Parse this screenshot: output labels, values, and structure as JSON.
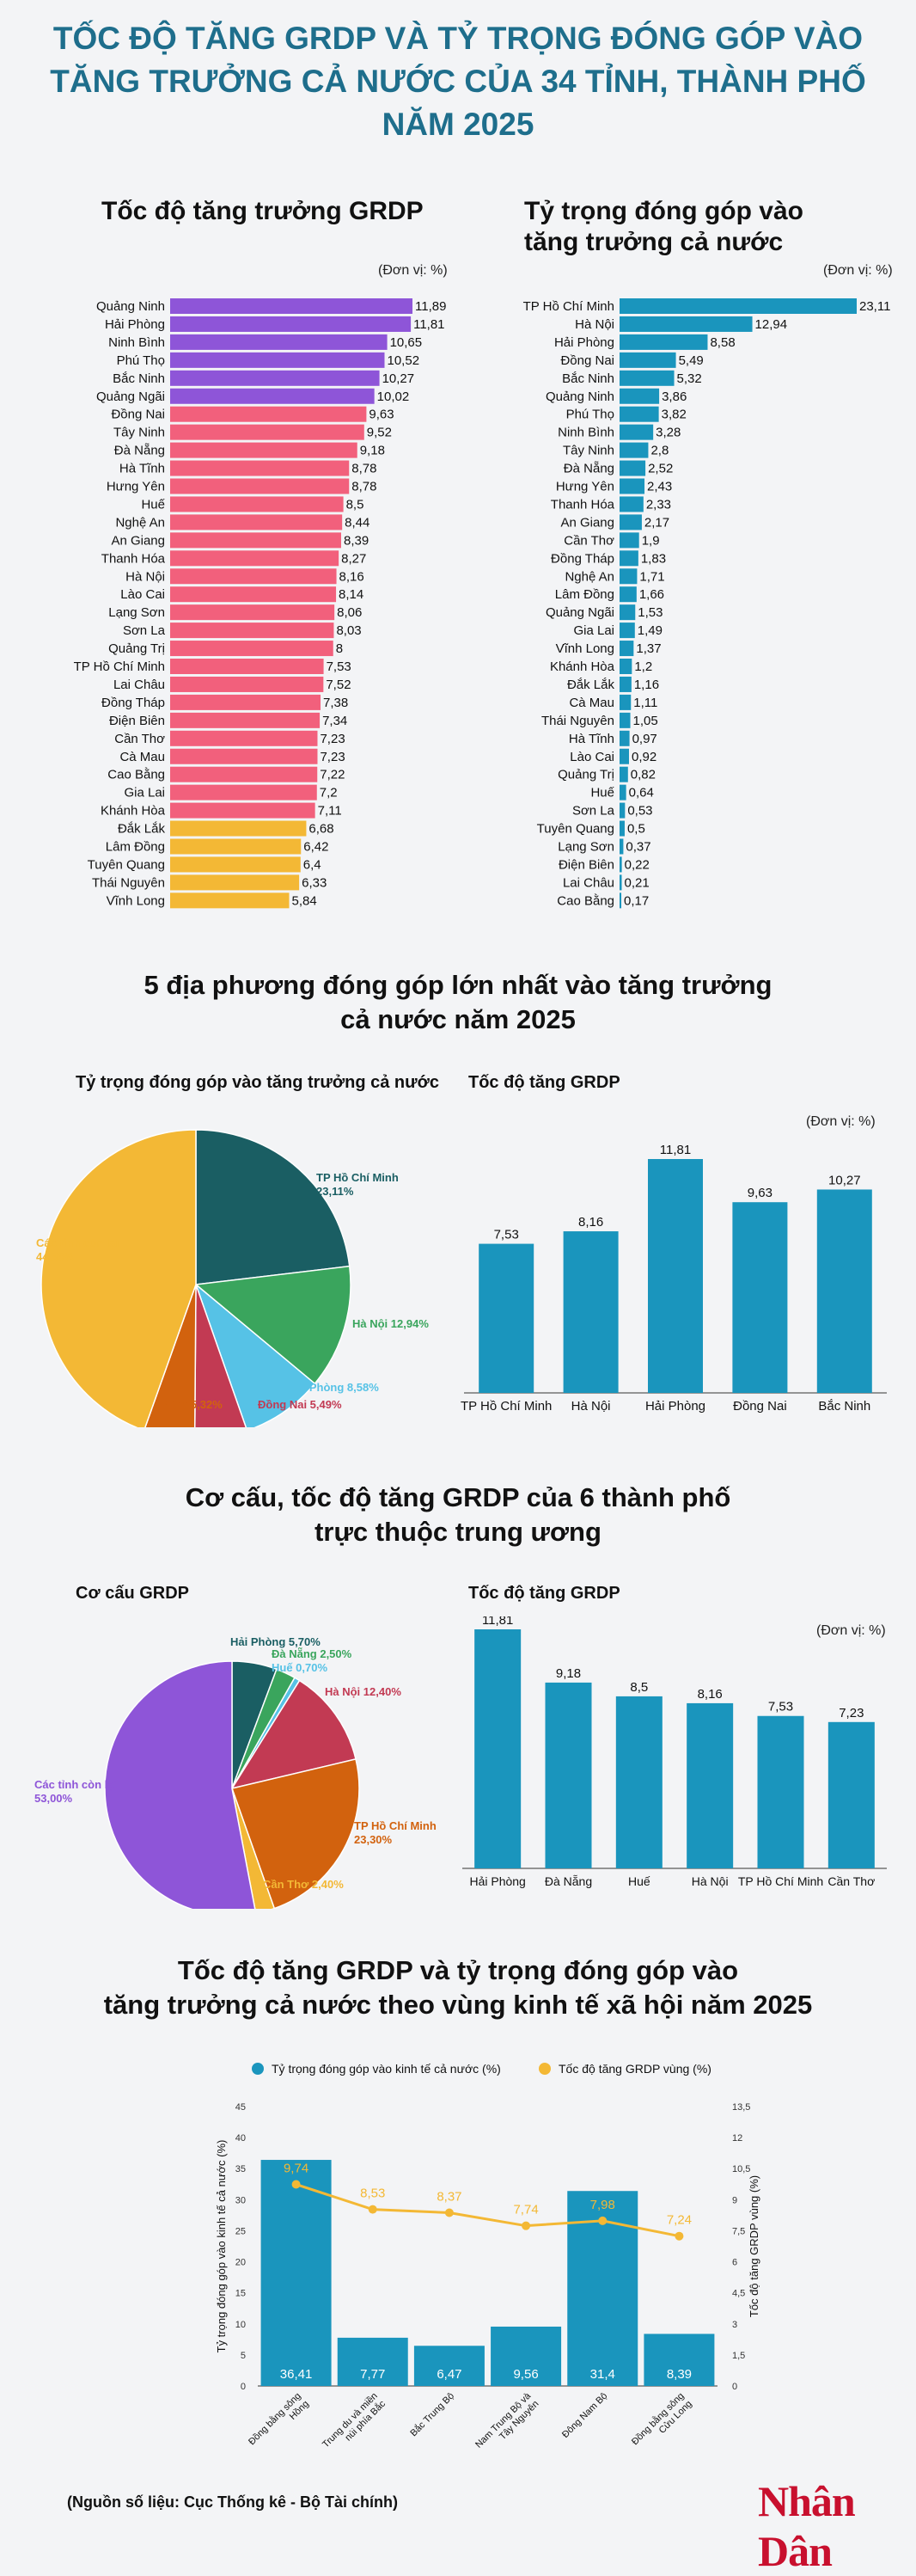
{
  "title_lines": [
    "TỐC ĐỘ TĂNG GRDP VÀ TỶ TRỌNG ĐÓNG GÓP VÀO",
    "TĂNG TRƯỞNG CẢ NƯỚC CỦA 34 TỈNH, THÀNH PHỐ",
    "NĂM 2025"
  ],
  "section1": {
    "left_title": "Tốc độ tăng trưởng GRDP",
    "right_title_lines": [
      "Tỷ trọng đóng góp vào",
      "tăng trưởng cả nước"
    ],
    "unit": "(Đơn vị: %)"
  },
  "section2": {
    "title_lines": [
      "5 địa phương đóng góp lớn nhất vào tăng trưởng",
      "cả nước năm 2025"
    ],
    "pie_title": "Tỷ trọng đóng góp vào tăng trưởng cả nước",
    "bar_title": "Tốc độ tăng GRDP",
    "unit": "(Đơn vị: %)"
  },
  "section3": {
    "title_lines": [
      "Cơ cấu, tốc độ tăng GRDP của 6 thành phố",
      "trực thuộc trung ương"
    ],
    "pie_title": "Cơ cấu GRDP",
    "bar_title": "Tốc độ tăng GRDP",
    "unit": "(Đơn vị: %)"
  },
  "section4": {
    "title_lines": [
      "Tốc độ tăng GRDP và tỷ trọng đóng góp vào",
      "tăng trưởng cả nước theo vùng kinh tế xã hội năm 2025"
    ]
  },
  "source": "(Nguồn số liệu: Cục Thống kê - Bộ Tài chính)",
  "logo": "Nhân Dân",
  "colors": {
    "title": "#1e6e8c",
    "purple": "#8e55d8",
    "pink": "#f2607c",
    "yellow": "#f3b835",
    "blue": "#1a95bd",
    "logo": "#c8102e"
  },
  "chart_data": [
    {
      "id": "grdp",
      "type": "bar",
      "orientation": "horizontal",
      "title": "Tốc độ tăng trưởng GRDP",
      "categories": [
        "Quảng Ninh",
        "Hải Phòng",
        "Ninh Bình",
        "Phú Thọ",
        "Bắc Ninh",
        "Quảng Ngãi",
        "Đồng Nai",
        "Tây Ninh",
        "Đà Nẵng",
        "Hà Tĩnh",
        "Hưng Yên",
        "Huế",
        "Nghệ An",
        "An Giang",
        "Thanh Hóa",
        "Hà Nội",
        "Lào Cai",
        "Lạng Sơn",
        "Sơn La",
        "Quảng Trị",
        "TP Hồ Chí Minh",
        "Lai Châu",
        "Đồng Tháp",
        "Điện Biên",
        "Cần Thơ",
        "Cà Mau",
        "Cao Bằng",
        "Gia Lai",
        "Khánh Hòa",
        "Đắk Lắk",
        "Lâm Đồng",
        "Tuyên Quang",
        "Thái Nguyên",
        "Vĩnh Long"
      ],
      "values": [
        11.89,
        11.81,
        10.65,
        10.52,
        10.27,
        10.02,
        9.63,
        9.52,
        9.18,
        8.78,
        8.78,
        8.5,
        8.44,
        8.39,
        8.27,
        8.16,
        8.14,
        8.06,
        8.03,
        8,
        7.53,
        7.52,
        7.38,
        7.34,
        7.23,
        7.23,
        7.22,
        7.2,
        7.11,
        6.68,
        6.42,
        6.4,
        6.33,
        5.84
      ],
      "labels": [
        "11,89",
        "11,81",
        "10,65",
        "10,52",
        "10,27",
        "10,02",
        "9,63",
        "9,52",
        "9,18",
        "8,78",
        "8,78",
        "8,5",
        "8,44",
        "8,39",
        "8,27",
        "8,16",
        "8,14",
        "8,06",
        "8,03",
        "8",
        "7,53",
        "7,52",
        "7,38",
        "7,34",
        "7,23",
        "7,23",
        "7,22",
        "7,2",
        "7,11",
        "6,68",
        "6,42",
        "6,4",
        "6,33",
        "5,84"
      ],
      "colors": [
        "#8e55d8",
        "#8e55d8",
        "#8e55d8",
        "#8e55d8",
        "#8e55d8",
        "#8e55d8",
        "#f2607c",
        "#f2607c",
        "#f2607c",
        "#f2607c",
        "#f2607c",
        "#f2607c",
        "#f2607c",
        "#f2607c",
        "#f2607c",
        "#f2607c",
        "#f2607c",
        "#f2607c",
        "#f2607c",
        "#f2607c",
        "#f2607c",
        "#f2607c",
        "#f2607c",
        "#f2607c",
        "#f2607c",
        "#f2607c",
        "#f2607c",
        "#f2607c",
        "#f2607c",
        "#f3b835",
        "#f3b835",
        "#f3b835",
        "#f3b835",
        "#f3b835"
      ],
      "xlim": [
        0,
        11.89
      ]
    },
    {
      "id": "contrib",
      "type": "bar",
      "orientation": "horizontal",
      "title": "Tỷ trọng đóng góp vào tăng trưởng cả nước",
      "categories": [
        "TP Hồ Chí Minh",
        "Hà Nội",
        "Hải Phòng",
        "Đồng Nai",
        "Bắc Ninh",
        "Quảng Ninh",
        "Phú Thọ",
        "Ninh Bình",
        "Tây Ninh",
        "Đà Nẵng",
        "Hưng Yên",
        "Thanh Hóa",
        "An Giang",
        "Cần Thơ",
        "Đồng Tháp",
        "Nghệ An",
        "Lâm Đồng",
        "Quảng Ngãi",
        "Gia Lai",
        "Vĩnh Long",
        "Khánh Hòa",
        "Đắk Lắk",
        "Cà Mau",
        "Thái Nguyên",
        "Hà Tĩnh",
        "Lào Cai",
        "Quảng Trị",
        "Huế",
        "Sơn La",
        "Tuyên Quang",
        "Lạng Sơn",
        "Điện Biên",
        "Lai Châu",
        "Cao Bằng"
      ],
      "values": [
        23.11,
        12.94,
        8.58,
        5.49,
        5.32,
        3.86,
        3.82,
        3.28,
        2.8,
        2.52,
        2.43,
        2.33,
        2.17,
        1.9,
        1.83,
        1.71,
        1.66,
        1.53,
        1.49,
        1.37,
        1.2,
        1.16,
        1.11,
        1.05,
        0.97,
        0.92,
        0.82,
        0.64,
        0.53,
        0.5,
        0.37,
        0.22,
        0.21,
        0.17
      ],
      "labels": [
        "23,11",
        "12,94",
        "8,58",
        "5,49",
        "5,32",
        "3,86",
        "3,82",
        "3,28",
        "2,8",
        "2,52",
        "2,43",
        "2,33",
        "2,17",
        "1,9",
        "1,83",
        "1,71",
        "1,66",
        "1,53",
        "1,49",
        "1,37",
        "1,2",
        "1,16",
        "1,11",
        "1,05",
        "0,97",
        "0,92",
        "0,82",
        "0,64",
        "0,53",
        "0,5",
        "0,37",
        "0,22",
        "0,21",
        "0,17"
      ],
      "color": "#1a95bd",
      "xlim": [
        0,
        23.11
      ]
    },
    {
      "id": "pie5",
      "type": "pie",
      "title": "Tỷ trọng đóng góp vào tăng trưởng cả nước",
      "slices": [
        {
          "name": "TP Hồ Chí Minh",
          "value": 23.11,
          "label": "23,11%",
          "color": "#1a5e63"
        },
        {
          "name": "Hà Nội",
          "value": 12.94,
          "label": "12,94%",
          "color": "#3aa55d"
        },
        {
          "name": "Hải Phòng",
          "value": 8.58,
          "label": "8,58%",
          "color": "#56c2e6"
        },
        {
          "name": "Đồng Nai",
          "value": 5.49,
          "label": "5,49%",
          "color": "#c23a53"
        },
        {
          "name": "Bắc Ninh",
          "value": 5.32,
          "label": "5,32%",
          "color": "#d2620e"
        },
        {
          "name": "Các tỉnh còn lại",
          "value": 44.56,
          "label": "44,56%",
          "color": "#f3b835"
        }
      ]
    },
    {
      "id": "bar5",
      "type": "bar",
      "title": "Tốc độ tăng GRDP",
      "categories": [
        "TP Hồ Chí Minh",
        "Hà Nội",
        "Hải Phòng",
        "Đồng Nai",
        "Bắc Ninh"
      ],
      "values": [
        7.53,
        8.16,
        11.81,
        9.63,
        10.27
      ],
      "labels": [
        "7,53",
        "8,16",
        "11,81",
        "9,63",
        "10,27"
      ],
      "color": "#1a95bd",
      "ylim": [
        0,
        11.81
      ]
    },
    {
      "id": "pie6",
      "type": "pie",
      "title": "Cơ cấu GRDP",
      "slices": [
        {
          "name": "Hải Phòng",
          "value": 5.7,
          "label": "5,70%",
          "color": "#1a5e63"
        },
        {
          "name": "Đà Nẵng",
          "value": 2.5,
          "label": "2,50%",
          "color": "#3aa55d"
        },
        {
          "name": "Huế",
          "value": 0.7,
          "label": "0,70%",
          "color": "#56c2e6"
        },
        {
          "name": "Hà Nội",
          "value": 12.4,
          "label": "12,40%",
          "color": "#c23a53"
        },
        {
          "name": "TP Hồ Chí Minh",
          "value": 23.3,
          "label": "23,30%",
          "color": "#d2620e"
        },
        {
          "name": "Cần Thơ",
          "value": 2.4,
          "label": "2,40%",
          "color": "#f3b835"
        },
        {
          "name": "Các tỉnh còn lại",
          "value": 53.0,
          "label": "53,00%",
          "color": "#8e55d8"
        }
      ]
    },
    {
      "id": "bar6",
      "type": "bar",
      "title": "Tốc độ tăng GRDP",
      "categories": [
        "Hải Phòng",
        "Đà Nẵng",
        "Huế",
        "Hà Nội",
        "TP Hồ Chí Minh",
        "Cần Thơ"
      ],
      "values": [
        11.81,
        9.18,
        8.5,
        8.16,
        7.53,
        7.23
      ],
      "labels": [
        "11,81",
        "9,18",
        "8,5",
        "8,16",
        "7,53",
        "7,23"
      ],
      "color": "#1a95bd",
      "ylim": [
        0,
        11.81
      ]
    },
    {
      "id": "regions",
      "type": "bar",
      "title": "Tốc độ tăng GRDP và tỷ trọng đóng góp vào tăng trưởng cả nước theo vùng kinh tế xã hội năm 2025",
      "categories": [
        [
          "Đồng bằng sông",
          "Hồng"
        ],
        [
          "Trung du và miền",
          "núi phía Bắc"
        ],
        [
          "Bắc Trung Bộ"
        ],
        [
          "Nam Trung Bộ và",
          "Tây Nguyên"
        ],
        [
          "Đông Nam Bộ"
        ],
        [
          "Đồng bằng sông",
          "Cửu Long"
        ]
      ],
      "series": [
        {
          "name": "Tỷ trọng đóng góp vào kinh tế cả nước (%)",
          "type": "bar",
          "axis": "left",
          "values": [
            36.41,
            7.77,
            6.47,
            9.56,
            31.4,
            8.39
          ],
          "labels": [
            "36,41",
            "7,77",
            "6,47",
            "9,56",
            "31,4",
            "8,39"
          ],
          "color": "#1a95bd"
        },
        {
          "name": "Tốc độ tăng GRDP vùng (%)",
          "type": "line",
          "axis": "right",
          "values": [
            9.74,
            8.53,
            8.37,
            7.74,
            7.98,
            7.24
          ],
          "labels": [
            "9,74",
            "8,53",
            "8,37",
            "7,74",
            "7,98",
            "7,24"
          ],
          "color": "#f3b835"
        }
      ],
      "y_left": {
        "label": "Tỷ trọng đóng góp vào kinh tế cả nước (%)",
        "ylim": [
          0,
          45
        ],
        "ticks": [
          "0",
          "5",
          "10",
          "15",
          "20",
          "25",
          "30",
          "35",
          "40",
          "45"
        ]
      },
      "y_right": {
        "label": "Tốc độ tăng GRDP vùng (%)",
        "ylim": [
          0,
          13.5
        ],
        "ticks": [
          "0",
          "1,5",
          "3",
          "4,5",
          "6",
          "7,5",
          "9",
          "10,5",
          "12",
          "13,5"
        ]
      },
      "legend": "top"
    }
  ]
}
